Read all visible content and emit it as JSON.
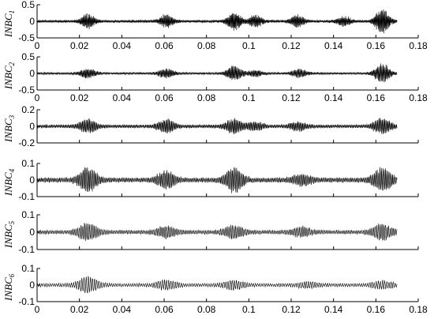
{
  "chart_data": {
    "type": "line",
    "xlim": [
      0,
      0.18
    ],
    "x_ticks": [
      "0",
      "0.02",
      "0.04",
      "0.06",
      "0.08",
      "0.1",
      "0.12",
      "0.14",
      "0.16",
      "0.18"
    ],
    "x_tick_values": [
      0,
      0.02,
      0.04,
      0.06,
      0.08,
      0.1,
      0.12,
      0.14,
      0.16,
      0.18
    ],
    "signal_x_range": [
      0,
      0.17
    ],
    "grid": false,
    "line_color": "#000000",
    "panels": [
      {
        "ylabel": "INBC",
        "ylabel_sub": "1",
        "ylim": [
          -0.5,
          0.5
        ],
        "y_ticks": [
          "0.5",
          "0",
          "-0.5"
        ],
        "y_tick_values": [
          0.5,
          0,
          -0.5
        ],
        "x_tick_labels_shown": true,
        "bursts": [
          {
            "t": 0.024,
            "amp": 0.22
          },
          {
            "t": 0.061,
            "amp": 0.2
          },
          {
            "t": 0.093,
            "amp": 0.28
          },
          {
            "t": 0.103,
            "amp": 0.18
          },
          {
            "t": 0.123,
            "amp": 0.18
          },
          {
            "t": 0.145,
            "amp": 0.14
          },
          {
            "t": 0.163,
            "amp": 0.4
          }
        ],
        "baseline_amp": 0.05
      },
      {
        "ylabel": "INBC",
        "ylabel_sub": "2",
        "ylim": [
          -0.5,
          0.5
        ],
        "y_ticks": [
          "0.5",
          "0",
          "-0.5"
        ],
        "y_tick_values": [
          0.5,
          0,
          -0.5
        ],
        "x_tick_labels_shown": true,
        "bursts": [
          {
            "t": 0.024,
            "amp": 0.15
          },
          {
            "t": 0.061,
            "amp": 0.15
          },
          {
            "t": 0.093,
            "amp": 0.22
          },
          {
            "t": 0.103,
            "amp": 0.1
          },
          {
            "t": 0.124,
            "amp": 0.12
          },
          {
            "t": 0.163,
            "amp": 0.3
          }
        ],
        "baseline_amp": 0.04
      },
      {
        "ylabel": "INBC",
        "ylabel_sub": "3",
        "ylim": [
          -0.2,
          0.2
        ],
        "y_ticks": [
          "0.2",
          "0",
          "-0.2"
        ],
        "y_tick_values": [
          0.2,
          0,
          -0.2
        ],
        "x_tick_labels_shown": false,
        "bursts": [
          {
            "t": 0.024,
            "amp": 0.08
          },
          {
            "t": 0.061,
            "amp": 0.08
          },
          {
            "t": 0.093,
            "amp": 0.09
          },
          {
            "t": 0.103,
            "amp": 0.05
          },
          {
            "t": 0.123,
            "amp": 0.05
          },
          {
            "t": 0.163,
            "amp": 0.1
          }
        ],
        "baseline_amp": 0.025
      },
      {
        "ylabel": "INBC",
        "ylabel_sub": "4",
        "ylim": [
          -0.1,
          0.1
        ],
        "y_ticks": [
          "0.1",
          "0",
          "-0.1"
        ],
        "y_tick_values": [
          0.1,
          0,
          -0.1
        ],
        "x_tick_labels_shown": false,
        "bursts": [
          {
            "t": 0.024,
            "amp": 0.07
          },
          {
            "t": 0.061,
            "amp": 0.05
          },
          {
            "t": 0.093,
            "amp": 0.07
          },
          {
            "t": 0.125,
            "amp": 0.03
          },
          {
            "t": 0.163,
            "amp": 0.07
          }
        ],
        "baseline_amp": 0.018
      },
      {
        "ylabel": "INBC",
        "ylabel_sub": "5",
        "ylim": [
          -0.1,
          0.1
        ],
        "y_ticks": [
          "0.1",
          "0",
          "-0.1"
        ],
        "y_tick_values": [
          0.1,
          0,
          -0.1
        ],
        "x_tick_labels_shown": false,
        "bursts": [
          {
            "t": 0.024,
            "amp": 0.05
          },
          {
            "t": 0.061,
            "amp": 0.03
          },
          {
            "t": 0.093,
            "amp": 0.035
          },
          {
            "t": 0.125,
            "amp": 0.025
          },
          {
            "t": 0.163,
            "amp": 0.045
          }
        ],
        "baseline_amp": 0.014
      },
      {
        "ylabel": "INBC",
        "ylabel_sub": "6",
        "ylim": [
          -0.1,
          0.1
        ],
        "y_ticks": [
          "0.1",
          "0",
          "-0.1"
        ],
        "y_tick_values": [
          0.1,
          0,
          -0.1
        ],
        "x_tick_labels_shown": true,
        "bursts": [
          {
            "t": 0.024,
            "amp": 0.045
          },
          {
            "t": 0.061,
            "amp": 0.025
          },
          {
            "t": 0.093,
            "amp": 0.025
          },
          {
            "t": 0.128,
            "amp": 0.015
          },
          {
            "t": 0.163,
            "amp": 0.02
          }
        ],
        "baseline_amp": 0.012
      }
    ]
  }
}
